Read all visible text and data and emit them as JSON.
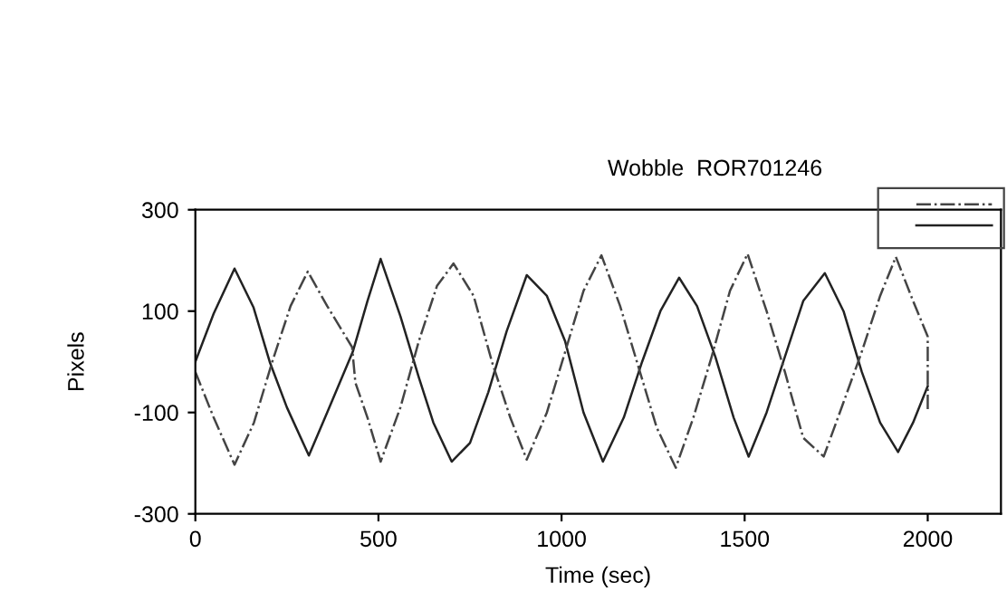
{
  "chart_data": {
    "type": "line",
    "title": "Wobble  ROR701246",
    "xlabel": "Time (sec)",
    "ylabel": "Pixels",
    "xlim": [
      0,
      2200
    ],
    "xticks": [
      0,
      500,
      1000,
      1500,
      2000
    ],
    "ylim": [
      -300,
      300
    ],
    "yticks": [
      -300,
      -100,
      100,
      300
    ],
    "grid": false,
    "series": [
      {
        "color": "#222222",
        "line_style": "solid",
        "x": [
          0,
          50,
          107,
          159,
          203,
          250,
          310,
          360,
          430,
          470,
          506,
          560,
          610,
          650,
          700,
          750,
          800,
          850,
          905,
          960,
          1010,
          1060,
          1113,
          1170,
          1220,
          1270,
          1321,
          1370,
          1420,
          1470,
          1511,
          1560,
          1610,
          1660,
          1719,
          1770,
          1820,
          1870,
          1919,
          1960,
          2000
        ],
        "values": [
          0,
          95,
          184,
          107,
          0,
          -90,
          -185,
          -100,
          20,
          120,
          203,
          90,
          -30,
          -120,
          -197,
          -160,
          -60,
          60,
          171,
          130,
          40,
          -100,
          -197,
          -110,
          0,
          100,
          166,
          110,
          10,
          -110,
          -187,
          -100,
          10,
          120,
          175,
          100,
          -20,
          -120,
          -178,
          -120,
          -48
        ]
      },
      {
        "color": "#444444",
        "line_style": "dashdot",
        "x": [
          0,
          50,
          107,
          160,
          210,
          260,
          307,
          360,
          428,
          437,
          470,
          506,
          560,
          610,
          660,
          705,
          760,
          810,
          860,
          905,
          960,
          1010,
          1060,
          1109,
          1160,
          1210,
          1260,
          1312,
          1360,
          1410,
          1460,
          1508,
          1560,
          1610,
          1660,
          1716,
          1770,
          1820,
          1870,
          1913,
          1960,
          2000,
          2000
        ],
        "values": [
          -20,
          -110,
          -203,
          -120,
          0,
          110,
          178,
          110,
          29,
          -41,
          -110,
          -197,
          -90,
          40,
          150,
          194,
          130,
          0,
          -110,
          -193,
          -100,
          20,
          140,
          210,
          110,
          -10,
          -130,
          -209,
          -110,
          10,
          140,
          213,
          100,
          -20,
          -150,
          -187,
          -80,
          20,
          130,
          207,
          120,
          50,
          -97
        ]
      }
    ]
  }
}
